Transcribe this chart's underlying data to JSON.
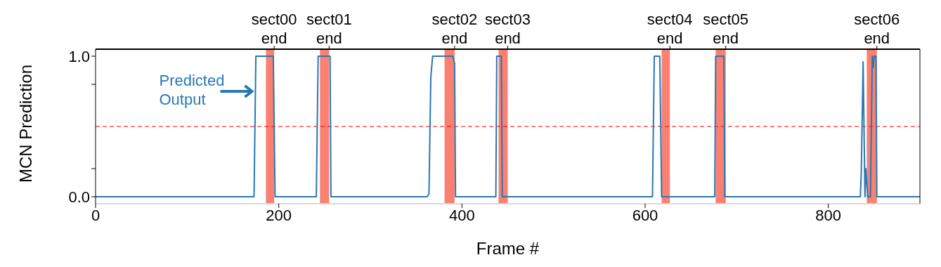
{
  "chart_data": {
    "type": "line",
    "xlabel": "Frame #",
    "ylabel": "MCN Prediction",
    "xlim": [
      0,
      900
    ],
    "xticks": [
      0,
      200,
      400,
      600,
      800
    ],
    "ylim": [
      -0.05,
      1.05
    ],
    "yticks": [
      {
        "value": 0,
        "label": "0.0"
      },
      {
        "value": 0.2,
        "label": null
      },
      {
        "value": 0.8,
        "label": null
      },
      {
        "value": 1,
        "label": "1.0"
      }
    ],
    "series": [
      {
        "color": "#2878b5",
        "x": [
          0,
          173,
          175,
          194,
          196,
          241,
          243,
          256,
          257,
          362,
          364,
          366,
          368,
          390,
          392,
          393,
          437,
          438,
          443,
          444,
          608,
          610,
          616,
          618,
          676,
          677,
          686,
          687,
          835,
          836,
          838,
          840,
          841,
          843,
          846,
          848,
          849,
          850,
          852,
          853,
          900
        ],
        "values": [
          0,
          0,
          1,
          1,
          0,
          0,
          1,
          1,
          0,
          0,
          0.02,
          0.85,
          1,
          1,
          0.95,
          0,
          0,
          1,
          1,
          0,
          0,
          1,
          1,
          0,
          0,
          1,
          1,
          0,
          0,
          0.18,
          0.96,
          0,
          0.2,
          0,
          0,
          1,
          0.92,
          1,
          1,
          0,
          0
        ]
      }
    ],
    "bands": [
      {
        "axis": "x",
        "from": 186,
        "to": 195,
        "color": "#fa8072"
      },
      {
        "axis": "x",
        "from": 245,
        "to": 255,
        "color": "#fa8072"
      },
      {
        "axis": "x",
        "from": 381,
        "to": 392,
        "color": "#fa8072"
      },
      {
        "axis": "x",
        "from": 440,
        "to": 450,
        "color": "#fa8072"
      },
      {
        "axis": "x",
        "from": 618,
        "to": 627,
        "color": "#fa8072"
      },
      {
        "axis": "x",
        "from": 677,
        "to": 688,
        "color": "#fa8072"
      },
      {
        "axis": "x",
        "from": 842,
        "to": 853,
        "color": "#fa8072"
      }
    ],
    "ref_lines": [
      {
        "axis": "y",
        "value": 0.5,
        "color": "#ff0000",
        "line_style": "dashed"
      }
    ],
    "annotations": [
      {
        "text": "Predicted\nOutput",
        "x": 173,
        "y": 0.75
      },
      "sect00\nend",
      "sect01\nend",
      "sect02\nend",
      "sect03\nend",
      "sect04\nend",
      "sect05\nend",
      "sect06\nend"
    ],
    "grid": false,
    "legend": false,
    "marker": "none",
    "line_style": "solid"
  }
}
